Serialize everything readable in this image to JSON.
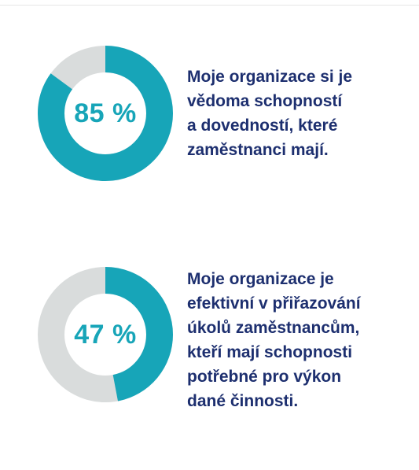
{
  "colors": {
    "accent": "#17a5b8",
    "track": "#d9dcdc",
    "text": "#1d2f6f",
    "divider": "#e6e6e6"
  },
  "chart_data": [
    {
      "type": "pie",
      "value": 85,
      "remainder": 15,
      "label": "85 %",
      "caption_lines": [
        "Moje organizace si je",
        "vědoma schopností",
        "a dovedností, které",
        "zaměstnanci mají."
      ]
    },
    {
      "type": "pie",
      "value": 47,
      "remainder": 53,
      "label": "47 %",
      "caption_lines": [
        "Moje organizace je",
        "efektivní v přiřazování",
        "úkolů zaměstnancům,",
        "kteří mají schopnosti",
        "potřebné pro výkon",
        "dané činnosti."
      ]
    }
  ]
}
